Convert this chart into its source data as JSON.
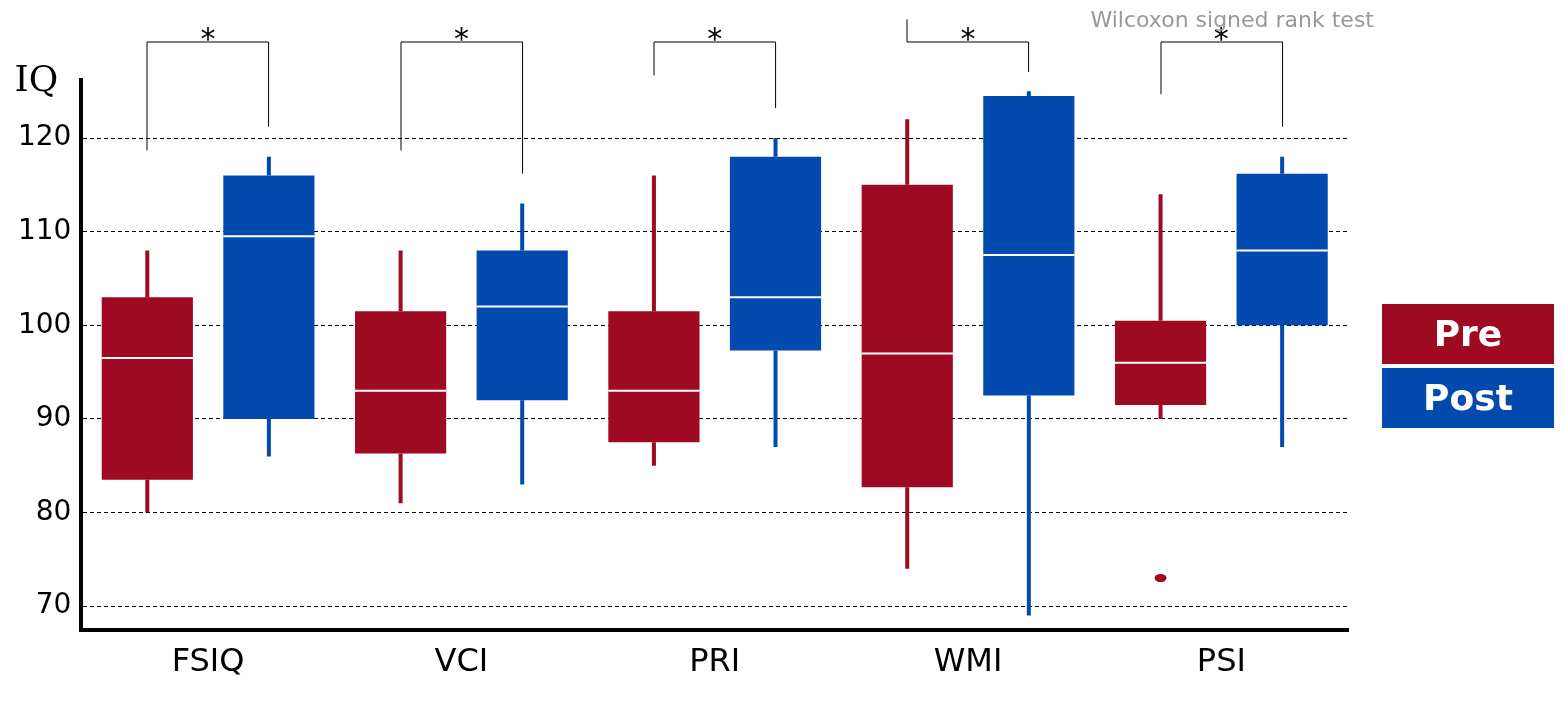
{
  "chart_data": {
    "type": "box",
    "ylabel": "IQ",
    "categories": [
      "FSIQ",
      "VCI",
      "PRI",
      "WMI",
      "PSI"
    ],
    "series": [
      {
        "name": "Pre",
        "color": "#9e0a22",
        "boxes": [
          {
            "low": 80,
            "q1": 83.5,
            "median": 96.5,
            "q3": 103,
            "high": 108
          },
          {
            "low": 81,
            "q1": 86.3,
            "median": 93,
            "q3": 101.5,
            "high": 108
          },
          {
            "low": 85,
            "q1": 87.5,
            "median": 93,
            "q3": 101.5,
            "high": 116
          },
          {
            "low": 74,
            "q1": 82.7,
            "median": 97,
            "q3": 115,
            "high": 122
          },
          {
            "low": 90,
            "q1": 91.5,
            "median": 96,
            "q3": 100.5,
            "high": 114,
            "outliers": [
              73
            ]
          }
        ]
      },
      {
        "name": "Post",
        "color": "#034aae",
        "boxes": [
          {
            "low": 86,
            "q1": 90,
            "median": 109.5,
            "q3": 116,
            "high": 118
          },
          {
            "low": 83,
            "q1": 92,
            "median": 102,
            "q3": 108,
            "high": 113
          },
          {
            "low": 87,
            "q1": 97.3,
            "median": 103,
            "q3": 118,
            "high": 120
          },
          {
            "low": 69,
            "q1": 92.5,
            "median": 107.5,
            "q3": 124.5,
            "high": 125
          },
          {
            "low": 87,
            "q1": 100,
            "median": 108,
            "q3": 116.2,
            "high": 118
          }
        ]
      }
    ],
    "ylim": [
      67.5,
      126.2
    ],
    "yticks": [
      70,
      80,
      90,
      100,
      110,
      120
    ],
    "grid": "y",
    "legend": "right",
    "annotations": [
      "*",
      "*",
      "*",
      "*",
      "*",
      "Wilcoxon signed rank test"
    ]
  }
}
